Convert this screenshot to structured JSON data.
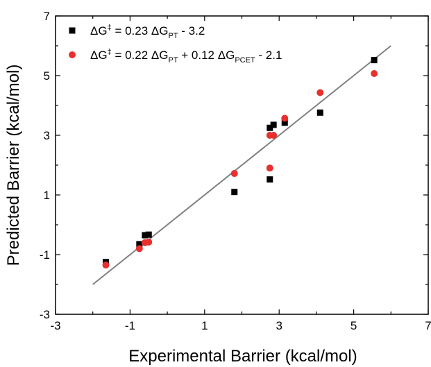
{
  "chart_data": {
    "type": "scatter",
    "xlabel": "Experimental Barrier (kcal/mol)",
    "ylabel": "Predicted Barrier (kcal/mol)",
    "xlim": [
      -3,
      7
    ],
    "ylim": [
      -3,
      7
    ],
    "xticks": [
      "-3",
      "-1",
      "1",
      "3",
      "5",
      "7"
    ],
    "yticks": [
      "-3",
      "-1",
      "1",
      "3",
      "5",
      "7"
    ],
    "grid": false,
    "legend_position": "top-left",
    "series": [
      {
        "legend_parts": [
          "ΔG",
          "‡",
          " = 0.23 ΔG",
          "PT",
          " - 3.2"
        ],
        "marker": "square",
        "color": "#000000",
        "points": [
          [
            -1.65,
            -1.25
          ],
          [
            -0.75,
            -0.65
          ],
          [
            -0.6,
            -0.35
          ],
          [
            -0.5,
            -0.33
          ],
          [
            1.8,
            1.1
          ],
          [
            2.75,
            1.52
          ],
          [
            2.75,
            3.25
          ],
          [
            2.85,
            3.35
          ],
          [
            3.15,
            3.42
          ],
          [
            4.1,
            3.76
          ],
          [
            5.55,
            5.52
          ]
        ]
      },
      {
        "legend_parts": [
          "ΔG",
          "‡",
          " = 0.22 ΔG",
          "PT",
          " + 0.12 ΔG",
          "PCET",
          " - 2.1"
        ],
        "marker": "circle",
        "color": "#e8302e",
        "points": [
          [
            -1.65,
            -1.35
          ],
          [
            -0.75,
            -0.8
          ],
          [
            -0.6,
            -0.6
          ],
          [
            -0.5,
            -0.58
          ],
          [
            1.8,
            1.72
          ],
          [
            2.75,
            1.9
          ],
          [
            2.75,
            3.0
          ],
          [
            2.85,
            3.0
          ],
          [
            3.15,
            3.57
          ],
          [
            4.1,
            4.43
          ],
          [
            5.55,
            5.07
          ]
        ]
      }
    ],
    "fit_line": {
      "x": [
        -2,
        6
      ],
      "y": [
        -2,
        6
      ],
      "color": "#808080"
    }
  }
}
